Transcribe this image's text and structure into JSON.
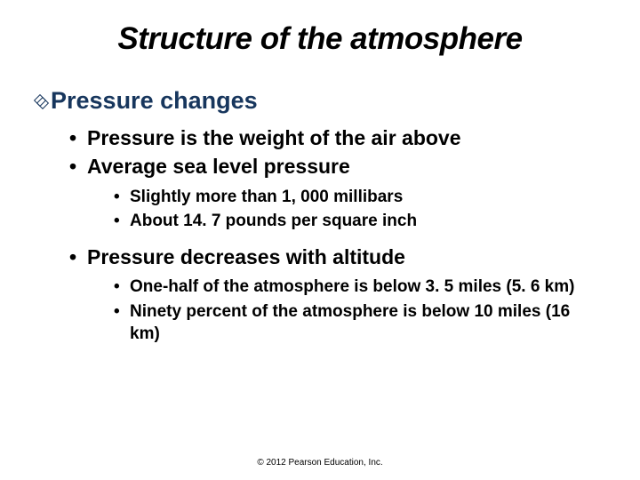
{
  "title": "Structure of the atmosphere",
  "section": {
    "heading": "Pressure changes"
  },
  "bullets": {
    "l1_0": "Pressure is the weight of the air above",
    "l1_1": "Average sea level pressure",
    "l2_0": "Slightly more than 1, 000 millibars",
    "l2_1": "About 14. 7 pounds per square inch",
    "l1_2": "Pressure decreases with altitude",
    "l2_2": "One-half of the atmosphere is below 3. 5 miles (5. 6 km)",
    "l2_3": "Ninety percent of the atmosphere is below 10 miles (16 km)"
  },
  "copyright": "© 2012 Pearson Education, Inc.",
  "colors": {
    "heading": "#17365d",
    "text": "#000000",
    "background": "#ffffff"
  },
  "typography": {
    "title_fontsize": 35,
    "section_fontsize": 27,
    "lvl1_fontsize": 23,
    "lvl2_fontsize": 19,
    "copyright_fontsize": 10,
    "title_style": "bold italic",
    "body_weight": "bold"
  }
}
